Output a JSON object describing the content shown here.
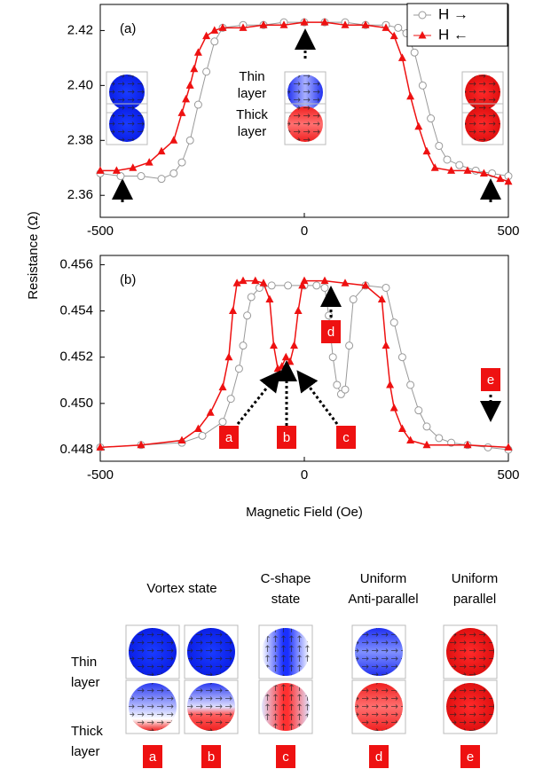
{
  "chart_data": [
    {
      "type": "line",
      "panel_label": "(a)",
      "ylabel": "Resistance (Ω)",
      "xlim": [
        -500,
        500
      ],
      "xticks": [
        -500,
        0,
        500
      ],
      "ylim": [
        2.352,
        2.4295
      ],
      "yticks": [
        2.36,
        2.38,
        {
          "value": 2.4,
          "label": "2.40"
        },
        2.42
      ],
      "layer_labels": [
        [
          "Thin",
          "layer"
        ],
        [
          "Thick",
          "layer"
        ]
      ],
      "series": [
        {
          "name": "H →",
          "color": "#999999",
          "marker": "circle",
          "x": [
            -500,
            -450,
            -400,
            -350,
            -320,
            -300,
            -280,
            -260,
            -240,
            -220,
            -200,
            -150,
            -100,
            -50,
            0,
            50,
            100,
            150,
            200,
            230,
            250,
            270,
            290,
            310,
            330,
            350,
            380,
            420,
            460,
            500
          ],
          "values": [
            2.368,
            2.367,
            2.367,
            2.366,
            2.368,
            2.372,
            2.38,
            2.393,
            2.405,
            2.416,
            2.421,
            2.422,
            2.422,
            2.423,
            2.423,
            2.423,
            2.423,
            2.422,
            2.422,
            2.421,
            2.419,
            2.412,
            2.4,
            2.388,
            2.378,
            2.373,
            2.371,
            2.369,
            2.368,
            2.367
          ]
        },
        {
          "name": "H ←",
          "color": "#ee1111",
          "marker": "triangle",
          "x": [
            -500,
            -460,
            -420,
            -380,
            -350,
            -320,
            -300,
            -290,
            -280,
            -270,
            -260,
            -240,
            -220,
            -200,
            -150,
            -100,
            -50,
            0,
            50,
            100,
            150,
            200,
            220,
            240,
            260,
            280,
            300,
            320,
            360,
            400,
            440,
            480,
            500
          ],
          "values": [
            2.369,
            2.369,
            2.37,
            2.372,
            2.376,
            2.38,
            2.39,
            2.395,
            2.4,
            2.406,
            2.412,
            2.418,
            2.42,
            2.421,
            2.421,
            2.422,
            2.422,
            2.423,
            2.423,
            2.422,
            2.422,
            2.421,
            2.418,
            2.41,
            2.396,
            2.385,
            2.376,
            2.37,
            2.369,
            2.369,
            2.368,
            2.366,
            2.365
          ]
        }
      ],
      "legend": "upper right"
    },
    {
      "type": "line",
      "panel_label": "(b)",
      "xlabel": "Magnetic Field (Oe)",
      "xlim": [
        -500,
        500
      ],
      "xticks": [
        -500,
        0,
        500
      ],
      "ylim": [
        0.4475,
        0.4564
      ],
      "yticks": [
        0.448,
        {
          "value": 0.45,
          "label": "0.450"
        },
        0.452,
        0.454,
        0.456
      ],
      "labels": [
        "a",
        "b",
        "c",
        "d",
        "e"
      ],
      "series": [
        {
          "name": "H →",
          "color": "#999999",
          "marker": "circle",
          "x": [
            -500,
            -400,
            -300,
            -250,
            -200,
            -180,
            -160,
            -150,
            -140,
            -130,
            -110,
            -80,
            -40,
            0,
            30,
            50,
            60,
            70,
            80,
            90,
            100,
            110,
            120,
            150,
            200,
            220,
            240,
            260,
            280,
            300,
            330,
            360,
            400,
            450,
            500
          ],
          "values": [
            0.4481,
            0.4482,
            0.4483,
            0.4486,
            0.4492,
            0.4502,
            0.4515,
            0.4525,
            0.4538,
            0.4546,
            0.455,
            0.4551,
            0.4551,
            0.4551,
            0.4551,
            0.455,
            0.4538,
            0.452,
            0.4508,
            0.4504,
            0.4506,
            0.4525,
            0.4545,
            0.4551,
            0.455,
            0.4535,
            0.452,
            0.4508,
            0.4497,
            0.449,
            0.4485,
            0.4483,
            0.4482,
            0.4481,
            0.448
          ]
        },
        {
          "name": "H ←",
          "color": "#ee1111",
          "marker": "triangle",
          "x": [
            -500,
            -400,
            -300,
            -260,
            -230,
            -200,
            -185,
            -175,
            -165,
            -150,
            -120,
            -100,
            -85,
            -75,
            -65,
            -55,
            -45,
            -35,
            -25,
            -15,
            -5,
            0,
            50,
            100,
            150,
            190,
            200,
            210,
            220,
            240,
            260,
            300,
            400,
            500
          ],
          "values": [
            0.4481,
            0.4482,
            0.4484,
            0.4489,
            0.4496,
            0.4507,
            0.452,
            0.454,
            0.4552,
            0.4553,
            0.4553,
            0.4552,
            0.4545,
            0.4525,
            0.4515,
            0.4516,
            0.452,
            0.4518,
            0.4525,
            0.454,
            0.4551,
            0.4553,
            0.4553,
            0.4552,
            0.4551,
            0.4545,
            0.4525,
            0.4508,
            0.4498,
            0.4489,
            0.4484,
            0.4482,
            0.4482,
            0.4481
          ]
        }
      ]
    }
  ],
  "diagram": {
    "headers": [
      [
        "Vortex state"
      ],
      [
        "C-shape",
        "state"
      ],
      [
        "Uniform",
        "Anti-parallel"
      ],
      [
        "Uniform",
        "parallel"
      ]
    ],
    "row_labels": [
      [
        "Thin",
        "layer"
      ],
      [
        "Thick",
        "layer"
      ]
    ],
    "states": [
      "a",
      "b",
      "c",
      "d",
      "e"
    ]
  }
}
